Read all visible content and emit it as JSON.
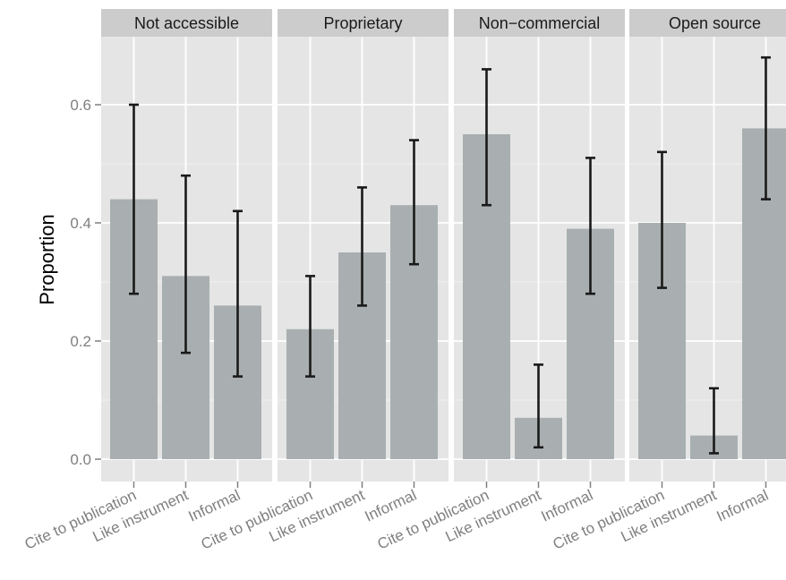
{
  "chart_data": {
    "type": "bar",
    "ylabel": "Proportion",
    "xlabel": "",
    "ylim": [
      0,
      0.7
    ],
    "yticks": [
      "0.0",
      "0.2",
      "0.4",
      "0.6"
    ],
    "grid": true,
    "categories": [
      "Cite to publication",
      "Like instrument",
      "Informal"
    ],
    "panels": [
      {
        "label": "Not accessible",
        "values": [
          0.44,
          0.31,
          0.26
        ],
        "lower": [
          0.28,
          0.18,
          0.14
        ],
        "upper": [
          0.6,
          0.48,
          0.42
        ]
      },
      {
        "label": "Proprietary",
        "values": [
          0.22,
          0.35,
          0.43
        ],
        "lower": [
          0.14,
          0.26,
          0.33
        ],
        "upper": [
          0.31,
          0.46,
          0.54
        ]
      },
      {
        "label": "Non−commercial",
        "values": [
          0.55,
          0.07,
          0.39
        ],
        "lower": [
          0.43,
          0.02,
          0.28
        ],
        "upper": [
          0.66,
          0.16,
          0.51
        ]
      },
      {
        "label": "Open source",
        "values": [
          0.4,
          0.04,
          0.56
        ],
        "lower": [
          0.29,
          0.01,
          0.44
        ],
        "upper": [
          0.52,
          0.12,
          0.68
        ]
      }
    ],
    "colors": {
      "panel_bg": "#e5e5e5",
      "strip_bg": "#cccccc",
      "grid": "#ffffff",
      "bar": "#a9afb0",
      "error_bar": "#1a1a1a",
      "tick_text": "#7f7f7f"
    }
  }
}
